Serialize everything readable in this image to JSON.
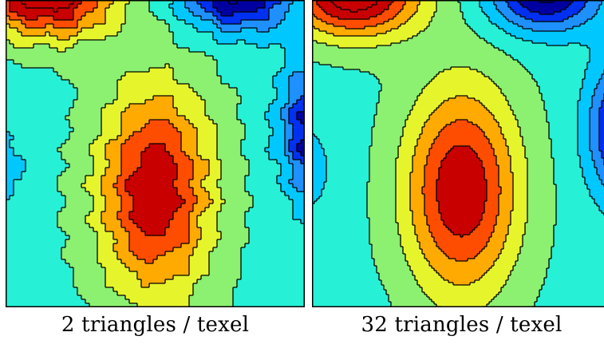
{
  "panels": [
    {
      "caption": "2 triangles / texel",
      "mode": "coarse"
    },
    {
      "caption": "32 triangles / texel",
      "mode": "smooth"
    }
  ],
  "colormap": [
    "#0000a0",
    "#0030f0",
    "#1e90ff",
    "#00c8ff",
    "#26f0d6",
    "#8cf070",
    "#e6f52b",
    "#ffaa00",
    "#ff4d00",
    "#c80000"
  ]
}
